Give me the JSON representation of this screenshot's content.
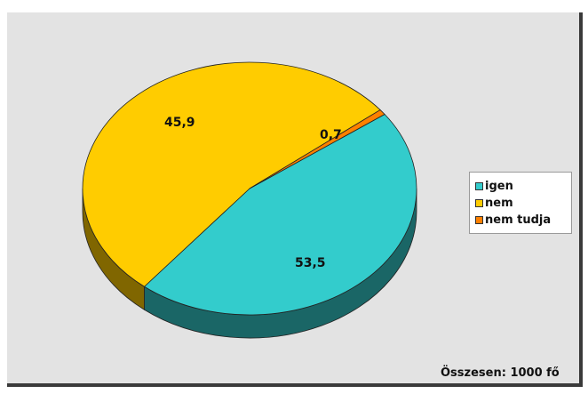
{
  "chart_data": {
    "type": "pie",
    "categories": [
      "igen",
      "nem",
      "nem tudja"
    ],
    "values": [
      45.9,
      53.5,
      0.7
    ],
    "value_labels": [
      "45,9",
      "53,5",
      "0,7"
    ],
    "colors": [
      "#33cccc",
      "#ffcc00",
      "#ff8000"
    ],
    "style": "3d",
    "legend_placement": "right",
    "background": "#e3e3e3"
  },
  "footer": {
    "total": "Összesen: 1000 fő"
  }
}
